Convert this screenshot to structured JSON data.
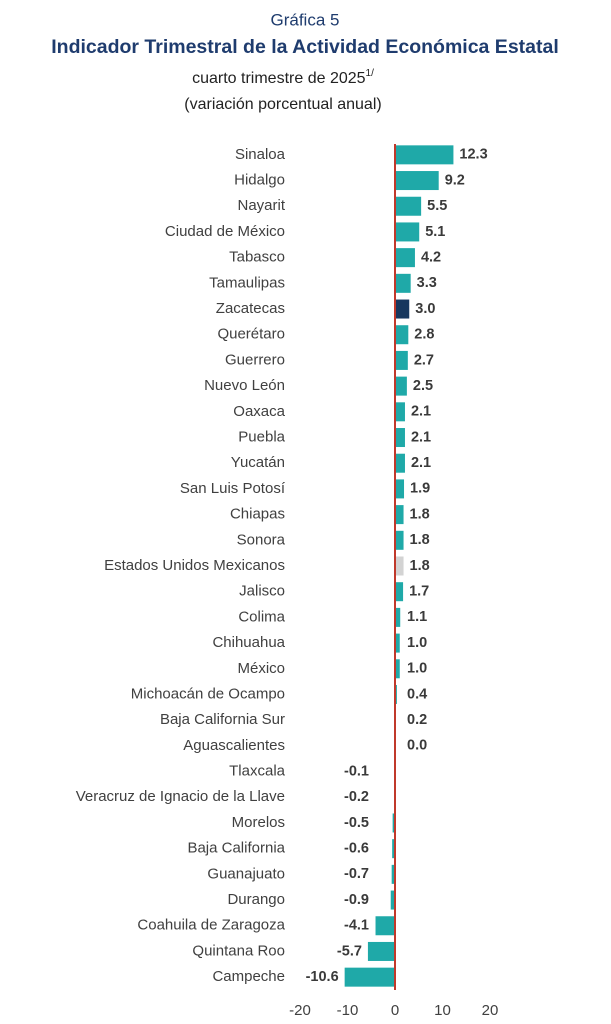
{
  "chart_data": {
    "type": "bar",
    "orientation": "horizontal",
    "figure_label": "Gráfica 5",
    "title": "Indicador Trimestral de la Actividad Económica Estatal",
    "subtitle": "cuarto trimestre de 2025",
    "subtitle_superscript": "1/",
    "subtitle2": "(variación porcentual anual)",
    "categories": [
      "Sinaloa",
      "Hidalgo",
      "Nayarit",
      "Ciudad de México",
      "Tabasco",
      "Tamaulipas",
      "Zacatecas",
      "Querétaro",
      "Guerrero",
      "Nuevo León",
      "Oaxaca",
      "Puebla",
      "Yucatán",
      "San Luis Potosí",
      "Chiapas",
      "Sonora",
      "Estados Unidos Mexicanos",
      "Jalisco",
      "Colima",
      "Chihuahua",
      "México",
      "Michoacán de Ocampo",
      "Baja California Sur",
      "Aguascalientes",
      "Tlaxcala",
      "Veracruz de Ignacio de la Llave",
      "Morelos",
      "Baja California",
      "Guanajuato",
      "Durango",
      "Coahuila de Zaragoza",
      "Quintana Roo",
      "Campeche"
    ],
    "values": [
      12.3,
      9.2,
      5.5,
      5.1,
      4.2,
      3.3,
      3,
      2.8,
      2.7,
      2.5,
      2.1,
      2.1,
      2.1,
      1.9,
      1.8,
      1.8,
      1.8,
      1.7,
      1.1,
      1,
      1,
      0.4,
      0.2,
      0,
      -0.1,
      -0.2,
      -0.5,
      -0.6,
      -0.7,
      -0.9,
      -4.1,
      -5.7,
      -10.6
    ],
    "value_labels": [
      "12.3",
      "9.2",
      "5.5",
      "5.1",
      "4.2",
      "3.3",
      "3.0",
      "2.8",
      "2.7",
      "2.5",
      "2.1",
      "2.1",
      "2.1",
      "1.9",
      "1.8",
      "1.8",
      "1.8",
      "1.7",
      "1.1",
      "1.0",
      "1.0",
      "0.4",
      "0.2",
      "0.0",
      "-0.1",
      "-0.2",
      "-0.5",
      "-0.6",
      "-0.7",
      "-0.9",
      "-4.1",
      "-5.7",
      "-10.6"
    ],
    "colors": [
      "#1fa9a8",
      "#1fa9a8",
      "#1fa9a8",
      "#1fa9a8",
      "#1fa9a8",
      "#1fa9a8",
      "#17375e",
      "#1fa9a8",
      "#1fa9a8",
      "#1fa9a8",
      "#1fa9a8",
      "#1fa9a8",
      "#1fa9a8",
      "#1fa9a8",
      "#1fa9a8",
      "#1fa9a8",
      "#d3d3d3",
      "#1fa9a8",
      "#1fa9a8",
      "#1fa9a8",
      "#1fa9a8",
      "#1fa9a8",
      "#1fa9a8",
      "#1fa9a8",
      "#1fa9a8",
      "#1fa9a8",
      "#1fa9a8",
      "#1fa9a8",
      "#1fa9a8",
      "#1fa9a8",
      "#1fa9a8",
      "#1fa9a8",
      "#1fa9a8"
    ],
    "zero_line_color": "#c0392b",
    "xlim": [
      -20,
      20
    ],
    "xticks": [
      -20,
      -10,
      0,
      10,
      20
    ],
    "grid": false
  }
}
